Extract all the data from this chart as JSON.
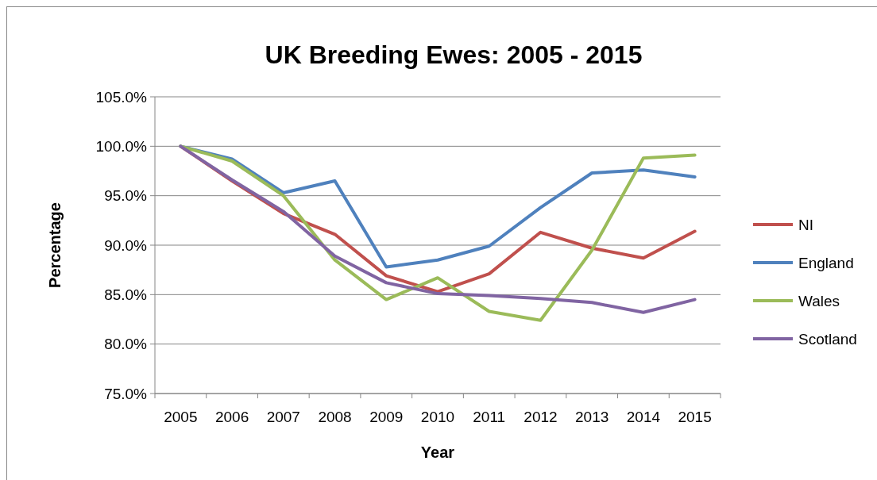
{
  "chart_data": {
    "type": "line",
    "title": "UK Breeding Ewes: 2005 - 2015",
    "xlabel": "Year",
    "ylabel": "Percentage",
    "categories": [
      "2005",
      "2006",
      "2007",
      "2008",
      "2009",
      "2010",
      "2011",
      "2012",
      "2013",
      "2014",
      "2015"
    ],
    "ylim": [
      75,
      105
    ],
    "yticks": [
      {
        "value": 75,
        "label": "75.0%"
      },
      {
        "value": 80,
        "label": "80.0%"
      },
      {
        "value": 85,
        "label": "85.0%"
      },
      {
        "value": 90,
        "label": "90.0%"
      },
      {
        "value": 95,
        "label": "95.0%"
      },
      {
        "value": 100,
        "label": "100.0%"
      },
      {
        "value": 105,
        "label": "105.0%"
      }
    ],
    "grid": "y",
    "legend": "right",
    "marker": "none",
    "series": [
      {
        "name": "NI",
        "color": "#c0504d",
        "values": [
          100,
          96.5,
          93.2,
          91.1,
          86.9,
          85.3,
          87.1,
          91.3,
          89.7,
          88.7,
          91.4
        ]
      },
      {
        "name": "England",
        "color": "#4f81bd",
        "values": [
          100,
          98.7,
          95.3,
          96.5,
          87.8,
          88.5,
          89.9,
          93.8,
          97.3,
          97.6,
          96.9
        ]
      },
      {
        "name": "Wales",
        "color": "#9bbb59",
        "values": [
          100,
          98.5,
          95.0,
          88.5,
          84.5,
          86.7,
          83.3,
          82.4,
          89.5,
          98.8,
          99.1
        ]
      },
      {
        "name": "Scotland",
        "color": "#8064a2",
        "values": [
          100,
          96.6,
          93.4,
          88.9,
          86.2,
          85.1,
          84.9,
          84.6,
          84.2,
          83.2,
          84.5
        ]
      }
    ]
  }
}
